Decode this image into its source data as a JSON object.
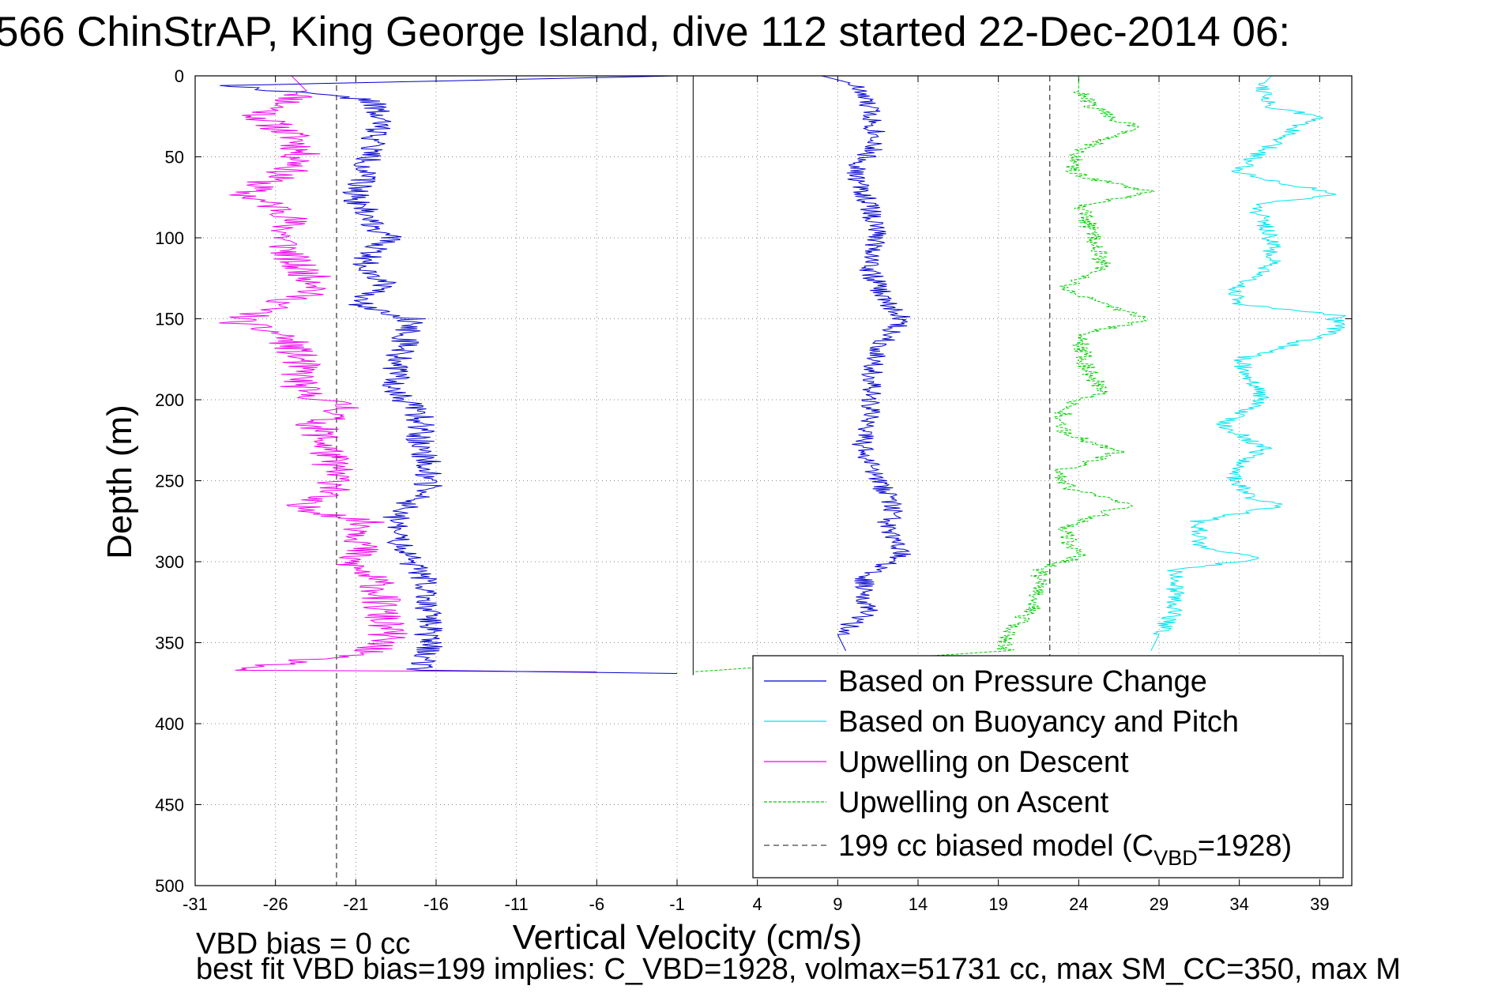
{
  "chart_data": {
    "type": "line",
    "title": "566 ChinStrAP, King George Island, dive 112 started 22-Dec-2014 06:",
    "xlabel": "Vertical Velocity (cm/s)",
    "ylabel": "Depth (m)",
    "xlim": [
      -31,
      41
    ],
    "ylim": [
      500,
      0
    ],
    "xticks": [
      -31,
      -26,
      -21,
      -16,
      -11,
      -6,
      -1,
      4,
      9,
      14,
      19,
      24,
      29,
      34,
      39
    ],
    "yticks": [
      0,
      50,
      100,
      150,
      200,
      250,
      300,
      350,
      400,
      450,
      500
    ],
    "grid": true,
    "legend_position": "bottom-right",
    "series": [
      {
        "name": "Based on Pressure Change",
        "color": "#0000cc",
        "style": "solid",
        "descent": {
          "depth": [
            0,
            6,
            15,
            30,
            45,
            60,
            75,
            90,
            100,
            115,
            130,
            140,
            150,
            165,
            180,
            195,
            210,
            225,
            240,
            255,
            270,
            285,
            300,
            315,
            330,
            345,
            360,
            367,
            369
          ],
          "velocity": [
            -1,
            -29,
            -20,
            -19.5,
            -20,
            -20.5,
            -21,
            -20,
            -19,
            -20.5,
            -19,
            -21,
            -17.5,
            -18,
            -18.5,
            -18.5,
            -17,
            -17,
            -16.5,
            -16.5,
            -18.5,
            -18.5,
            -17.5,
            -16.5,
            -16.5,
            -16.5,
            -16.5,
            -17,
            -1
          ]
        },
        "ascent": {
          "depth": [
            0,
            5,
            20,
            40,
            60,
            80,
            100,
            120,
            140,
            150,
            170,
            190,
            210,
            230,
            250,
            265,
            280,
            296,
            310,
            330,
            345,
            355
          ],
          "velocity": [
            8,
            10,
            11,
            11.5,
            10,
            11,
            11.5,
            11,
            12,
            13,
            11.5,
            11,
            11,
            10.5,
            11.5,
            12.5,
            12,
            13,
            10.5,
            11,
            9,
            9.5
          ]
        }
      },
      {
        "name": "Based on Buoyancy and Pitch",
        "color": "#00e5ee",
        "style": "solid",
        "ascent": {
          "depth": [
            0,
            5,
            20,
            25,
            35,
            50,
            60,
            73,
            80,
            100,
            115,
            130,
            140,
            148,
            158,
            175,
            200,
            215,
            230,
            245,
            260,
            265,
            275,
            290,
            298,
            305,
            330,
            345,
            355
          ],
          "velocity": [
            36,
            35.5,
            36,
            39,
            37,
            35,
            34,
            40,
            35,
            36,
            36,
            34,
            33.5,
            40,
            40,
            34,
            35.5,
            33,
            35.5,
            33.5,
            34.5,
            37,
            31.5,
            31.5,
            35.5,
            30,
            30,
            29,
            28.5
          ]
        }
      },
      {
        "name": "Upwelling on Descent",
        "color": "#ee00ee",
        "style": "solid",
        "descent": {
          "depth": [
            0,
            10,
            25,
            40,
            55,
            73,
            85,
            100,
            115,
            130,
            152,
            160,
            175,
            195,
            205,
            215,
            225,
            240,
            255,
            265,
            275,
            290,
            300,
            315,
            330,
            345,
            355,
            367,
            368
          ],
          "velocity": [
            -25,
            -24,
            -27,
            -24.5,
            -24.5,
            -28,
            -25,
            -25.5,
            -25,
            -23,
            -28.5,
            -25.5,
            -24.5,
            -24.5,
            -21.5,
            -23.5,
            -23,
            -22.5,
            -22,
            -25,
            -20.5,
            -20.5,
            -21.5,
            -19.5,
            -19.5,
            -19,
            -20,
            -28.5,
            -6
          ]
        }
      },
      {
        "name": "Upwelling on Ascent",
        "color": "#00cc00",
        "style": "dashed",
        "ascent": {
          "depth": [
            0,
            10,
            20,
            28,
            32,
            45,
            60,
            72,
            80,
            100,
            120,
            130,
            140,
            150,
            160,
            180,
            195,
            205,
            220,
            232,
            245,
            255,
            265,
            280,
            297,
            305,
            325,
            345,
            355,
            368
          ],
          "velocity": [
            24,
            24,
            25,
            26.5,
            28,
            24,
            23.5,
            28.5,
            24,
            25,
            25.5,
            23,
            25,
            28.5,
            24,
            24.5,
            25.5,
            23,
            23,
            26.5,
            22.5,
            23.5,
            27,
            23,
            24,
            21.5,
            21.5,
            19.5,
            19.5,
            0
          ]
        }
      },
      {
        "name": "199 cc biased model (C",
        "name_subscript": "VBD",
        "name_suffix": "=1928)",
        "color": "#444444",
        "style": "dashed",
        "lines": [
          {
            "velocity": -22.2,
            "depth": [
              0,
              500
            ]
          },
          {
            "velocity": 22.2,
            "depth": [
              0,
              370
            ]
          }
        ]
      }
    ],
    "zero_line": {
      "velocity": 0,
      "depth": [
        0,
        370
      ]
    }
  },
  "annotations": {
    "line1": "VBD bias = 0 cc",
    "line2": "best fit VBD bias=199 implies: C_VBD=1928, volmax=51731 cc, max SM_CC=350, max M"
  }
}
